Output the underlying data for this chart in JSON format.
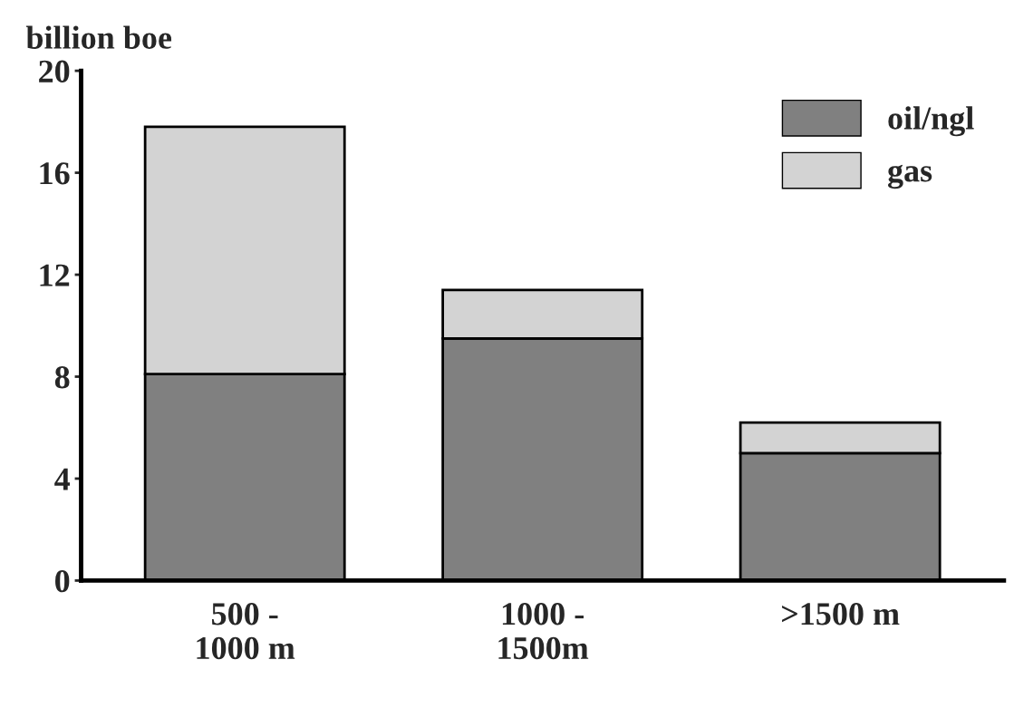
{
  "chart_data": {
    "type": "bar",
    "ylabel": "billion boe",
    "stacked": true,
    "categories": [
      "500 -\n1000 m",
      "1000 -\n1500m",
      ">1500 m"
    ],
    "series": [
      {
        "name": "oil/ngl",
        "color": "#808080",
        "values": [
          8.1,
          9.5,
          5.0
        ]
      },
      {
        "name": "gas",
        "color": "#d3d3d3",
        "values": [
          9.7,
          1.9,
          1.2
        ]
      }
    ],
    "ylim": [
      0,
      20
    ],
    "yticks": [
      0,
      4,
      8,
      12,
      16,
      20
    ],
    "grid": false,
    "legend": "top right"
  }
}
